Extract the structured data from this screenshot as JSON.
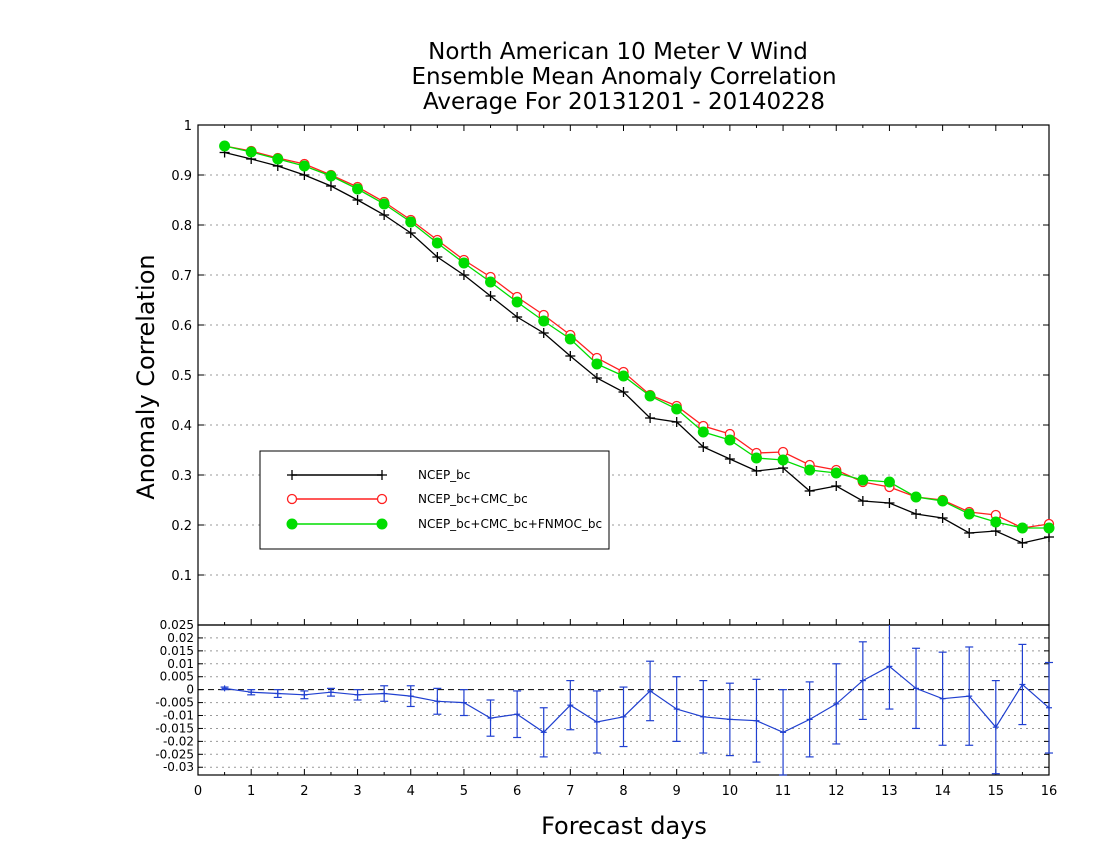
{
  "titles": {
    "line1": "North American 10 Meter V Wind",
    "line2": "Ensemble Mean Anomaly Correlation",
    "line3": "Average For 20131201 - 20140228"
  },
  "axes": {
    "xlabel": "Forecast days",
    "ylabel": "Anomaly Correlation"
  },
  "chart_data": [
    {
      "type": "line",
      "title": "North American 10 Meter V Wind Ensemble Mean Anomaly Correlation Average For 20131201 - 20140228",
      "xlabel": "Forecast days",
      "ylabel": "Anomaly Correlation",
      "xlim": [
        0,
        16
      ],
      "ylim": [
        0,
        1
      ],
      "x_ticks": [
        "0",
        "1",
        "2",
        "3",
        "4",
        "5",
        "6",
        "7",
        "8",
        "9",
        "10",
        "11",
        "12",
        "13",
        "14",
        "15",
        "16"
      ],
      "y_ticks": [
        "0.1",
        "0.2",
        "0.3",
        "0.4",
        "0.5",
        "0.6",
        "0.7",
        "0.8",
        "0.9",
        "1"
      ],
      "grid": "horizontal dotted",
      "legend_position": "left-middle",
      "x": [
        0.5,
        1,
        1.5,
        2,
        2.5,
        3,
        3.5,
        4,
        4.5,
        5,
        5.5,
        6,
        6.5,
        7,
        7.5,
        8,
        8.5,
        9,
        9.5,
        10,
        10.5,
        11,
        11.5,
        12,
        12.5,
        13,
        13.5,
        14,
        14.5,
        15,
        15.5,
        16
      ],
      "series": [
        {
          "name": "NCEP_bc",
          "color": "#000000",
          "marker": "plus",
          "values": [
            0.945,
            0.932,
            0.918,
            0.9,
            0.878,
            0.85,
            0.82,
            0.784,
            0.736,
            0.7,
            0.658,
            0.616,
            0.584,
            0.538,
            0.494,
            0.466,
            0.414,
            0.406,
            0.356,
            0.332,
            0.308,
            0.314,
            0.268,
            0.278,
            0.248,
            0.244,
            0.222,
            0.214,
            0.184,
            0.188,
            0.164,
            0.176
          ]
        },
        {
          "name": "NCEP_bc+CMC_bc",
          "color": "#ff2020",
          "marker": "open-circle",
          "values": [
            0.958,
            0.948,
            0.934,
            0.922,
            0.9,
            0.876,
            0.846,
            0.81,
            0.77,
            0.73,
            0.696,
            0.656,
            0.62,
            0.58,
            0.534,
            0.506,
            0.46,
            0.438,
            0.398,
            0.382,
            0.344,
            0.346,
            0.32,
            0.31,
            0.286,
            0.276,
            0.256,
            0.25,
            0.226,
            0.22,
            0.194,
            0.202
          ]
        },
        {
          "name": "NCEP_bc+CMC_bc+FNMOC_bc",
          "color": "#00dd00",
          "marker": "filled-circle",
          "values": [
            0.958,
            0.946,
            0.932,
            0.918,
            0.898,
            0.872,
            0.842,
            0.806,
            0.764,
            0.724,
            0.686,
            0.646,
            0.608,
            0.572,
            0.522,
            0.498,
            0.458,
            0.432,
            0.386,
            0.37,
            0.334,
            0.33,
            0.31,
            0.304,
            0.29,
            0.286,
            0.256,
            0.248,
            0.222,
            0.206,
            0.194,
            0.194
          ]
        }
      ]
    },
    {
      "type": "line",
      "subtype": "errorbar",
      "xlim": [
        0,
        16
      ],
      "ylim": [
        -0.033,
        0.025
      ],
      "y_ticks": [
        "-0.03",
        "-0.025",
        "-0.02",
        "-0.015",
        "-0.01",
        "-0.005",
        "0",
        "0.005",
        "0.01",
        "0.015",
        "0.02",
        "0.025"
      ],
      "grid": "horizontal dotted",
      "zero_line": "dashed",
      "color": "#2040d0",
      "x": [
        0.5,
        1,
        1.5,
        2,
        2.5,
        3,
        3.5,
        4,
        4.5,
        5,
        5.5,
        6,
        6.5,
        7,
        7.5,
        8,
        8.5,
        9,
        9.5,
        10,
        10.5,
        11,
        11.5,
        12,
        12.5,
        13,
        13.5,
        14,
        14.5,
        15,
        15.5,
        16
      ],
      "values": [
        0.0005,
        -0.001,
        -0.0015,
        -0.002,
        -0.001,
        -0.002,
        -0.0015,
        -0.0025,
        -0.0045,
        -0.005,
        -0.011,
        -0.0095,
        -0.0165,
        -0.006,
        -0.0125,
        -0.0105,
        -0.0005,
        -0.0075,
        -0.0105,
        -0.0115,
        -0.012,
        -0.0165,
        -0.0115,
        -0.0055,
        0.0035,
        0.009,
        0.0005,
        -0.0035,
        -0.0025,
        -0.0145,
        0.002,
        -0.007
      ],
      "errors": [
        0.0005,
        0.001,
        0.0015,
        0.0015,
        0.0015,
        0.002,
        0.003,
        0.004,
        0.005,
        0.005,
        0.007,
        0.009,
        0.0095,
        0.0095,
        0.012,
        0.0115,
        0.0115,
        0.0125,
        0.014,
        0.014,
        0.016,
        0.0165,
        0.0145,
        0.0155,
        0.015,
        0.0165,
        0.0155,
        0.018,
        0.019,
        0.018,
        0.0155,
        0.0175
      ]
    }
  ]
}
